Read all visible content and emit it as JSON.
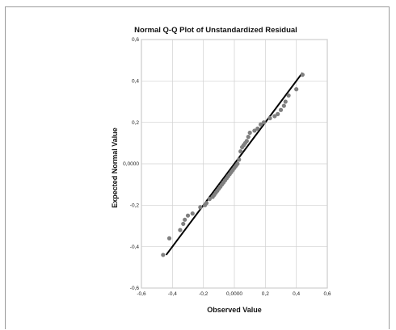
{
  "chart_data": {
    "type": "scatter",
    "title": "Normal Q-Q Plot of Unstandardized Residual",
    "xlabel": "Observed Value",
    "ylabel": "Expected Normal Value",
    "xlim": [
      -0.6,
      0.6
    ],
    "ylim": [
      -0.6,
      0.6
    ],
    "x_ticks": [
      -0.6,
      -0.4,
      -0.2,
      0.0,
      0.2,
      0.4,
      0.6
    ],
    "x_tick_labels": [
      "-0,6",
      "-0,4",
      "-0,2",
      "0,0000",
      "0,2",
      "0,4",
      "0,6"
    ],
    "y_ticks": [
      -0.6,
      -0.4,
      -0.2,
      0.0,
      0.2,
      0.4,
      0.6
    ],
    "y_tick_labels": [
      "-0,6",
      "-0,4",
      "-0,2",
      "0,0000",
      "0,2",
      "0,4",
      "0,6"
    ],
    "grid": true,
    "reference_line": {
      "x": [
        -0.44,
        0.44
      ],
      "y": [
        -0.44,
        0.44
      ]
    },
    "colors": {
      "points": "#808080",
      "reference_line": "#000000",
      "grid": "#d0d0d0"
    },
    "points": {
      "x": [
        -0.46,
        -0.42,
        -0.35,
        -0.33,
        -0.32,
        -0.3,
        -0.27,
        -0.22,
        -0.19,
        -0.18,
        -0.16,
        -0.14,
        -0.13,
        -0.12,
        -0.11,
        -0.1,
        -0.09,
        -0.08,
        -0.07,
        -0.06,
        -0.05,
        -0.04,
        -0.03,
        -0.02,
        -0.01,
        0.0,
        0.01,
        0.02,
        0.03,
        0.04,
        0.05,
        0.06,
        0.07,
        0.08,
        0.09,
        0.1,
        0.13,
        0.15,
        0.17,
        0.19,
        0.23,
        0.26,
        0.28,
        0.3,
        0.32,
        0.33,
        0.35,
        0.4,
        0.44
      ],
      "y": [
        -0.44,
        -0.36,
        -0.32,
        -0.29,
        -0.27,
        -0.25,
        -0.24,
        -0.21,
        -0.2,
        -0.19,
        -0.17,
        -0.16,
        -0.15,
        -0.14,
        -0.13,
        -0.12,
        -0.11,
        -0.1,
        -0.09,
        -0.08,
        -0.07,
        -0.06,
        -0.05,
        -0.04,
        -0.03,
        -0.02,
        -0.01,
        0.0,
        0.02,
        0.06,
        0.08,
        0.09,
        0.1,
        0.11,
        0.13,
        0.15,
        0.16,
        0.17,
        0.19,
        0.2,
        0.22,
        0.23,
        0.24,
        0.26,
        0.28,
        0.3,
        0.33,
        0.36,
        0.43
      ]
    }
  }
}
